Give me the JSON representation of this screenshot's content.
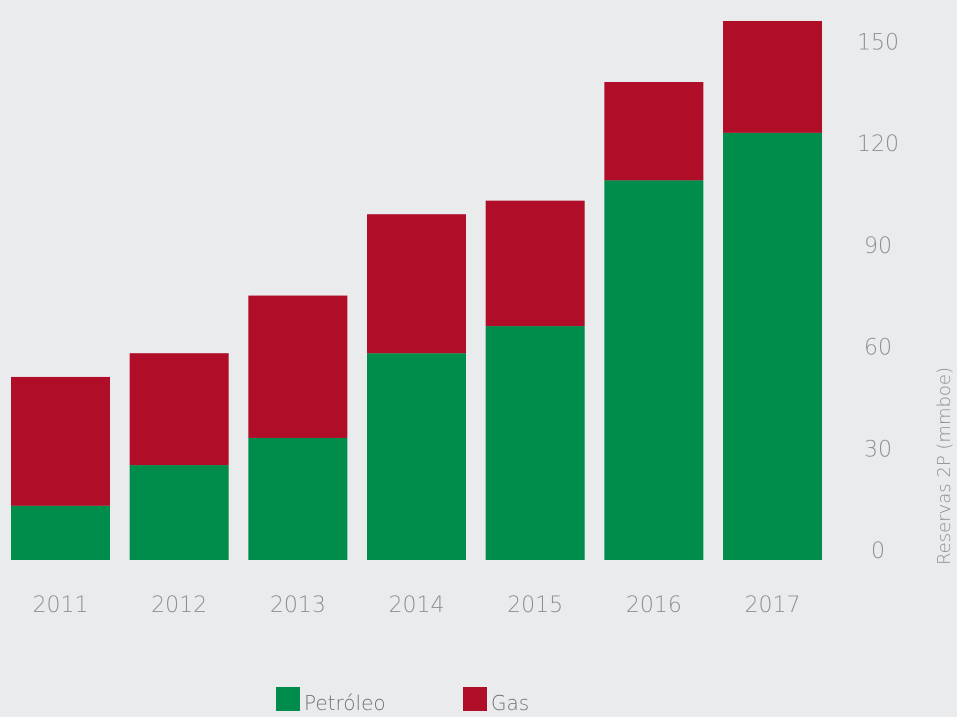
{
  "chart_data": {
    "type": "bar",
    "stacked": true,
    "categories": [
      "2011",
      "2012",
      "2013",
      "2014",
      "2015",
      "2016",
      "2017"
    ],
    "series": [
      {
        "name": "Petróleo",
        "color": "#008c4a",
        "values": [
          16,
          28,
          36,
          61,
          69,
          112,
          126
        ]
      },
      {
        "name": "Gas",
        "color": "#af0d28",
        "values": [
          38,
          33,
          42,
          41,
          37,
          29,
          33
        ]
      }
    ],
    "ylabel": "Reservas 2P (mmboe)",
    "ylim": [
      0,
      160
    ],
    "yticks": [
      0,
      30,
      60,
      90,
      120,
      150
    ],
    "y_axis_position": "right",
    "grid": false,
    "legend_position": "bottom-center"
  }
}
